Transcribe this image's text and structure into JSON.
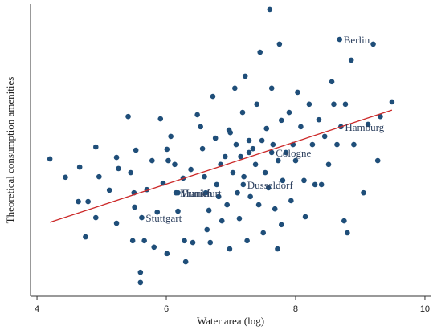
{
  "chart_data": {
    "type": "scatter",
    "xlabel": "Water area (log)",
    "ylabel": "Theoretical consumption amenities",
    "xlim": [
      3.9,
      10.1
    ],
    "ylim": [
      0,
      10
    ],
    "xticks": [
      4,
      6,
      8,
      10
    ],
    "color": "#1f4e79",
    "x": [
      4.2,
      4.44,
      4.66,
      4.64,
      4.79,
      4.75,
      4.91,
      4.96,
      4.91,
      5.12,
      5.23,
      5.26,
      5.23,
      5.41,
      5.45,
      5.5,
      5.53,
      5.51,
      5.48,
      5.6,
      5.6,
      5.7,
      5.66,
      5.78,
      5.81,
      5.86,
      5.91,
      5.95,
      6.01,
      6.01,
      6.03,
      6.07,
      6.13,
      6.18,
      6.26,
      6.28,
      6.3,
      6.38,
      6.41,
      6.48,
      6.53,
      6.56,
      6.59,
      6.61,
      6.66,
      6.63,
      6.68,
      6.72,
      6.76,
      6.78,
      6.81,
      6.84,
      6.86,
      6.91,
      6.94,
      6.97,
      6.98,
      7.03,
      7.06,
      7.08,
      7.1,
      7.13,
      7.15,
      7.18,
      7.2,
      7.22,
      7.25,
      7.28,
      7.3,
      7.34,
      7.38,
      7.4,
      7.43,
      7.45,
      7.48,
      7.5,
      7.53,
      7.55,
      7.58,
      7.6,
      7.63,
      7.65,
      7.68,
      7.72,
      7.73,
      7.75,
      7.78,
      7.78,
      7.8,
      7.85,
      7.9,
      7.93,
      7.96,
      8.0,
      8.03,
      8.08,
      8.13,
      8.15,
      8.21,
      8.26,
      8.3,
      8.36,
      8.4,
      8.45,
      8.51,
      8.56,
      8.59,
      8.64,
      8.7,
      8.68,
      8.75,
      8.8,
      8.86,
      8.9,
      9.05,
      9.12,
      9.2,
      9.27,
      9.31,
      9.49,
      8.77,
      6.99,
      7.28,
      7.63,
      7.19,
      6.18,
      6.15,
      5.62
    ],
    "values": [
      4.7,
      4.07,
      4.42,
      3.24,
      3.24,
      2.03,
      5.11,
      4.09,
      2.69,
      3.63,
      4.75,
      4.37,
      2.5,
      6.15,
      4.23,
      3.54,
      5.0,
      3.05,
      1.9,
      0.82,
      0.47,
      3.65,
      1.9,
      4.64,
      1.68,
      2.88,
      6.07,
      3.87,
      5.03,
      1.46,
      4.64,
      5.47,
      4.51,
      2.91,
      4.04,
      1.9,
      1.18,
      4.34,
      1.84,
      6.21,
      5.8,
      5.05,
      4.09,
      3.54,
      2.94,
      2.28,
      1.84,
      6.84,
      5.41,
      3.82,
      3.41,
      4.51,
      2.58,
      4.78,
      3.13,
      5.69,
      1.62,
      4.23,
      7.12,
      5.19,
      3.54,
      2.66,
      4.78,
      6.29,
      4.09,
      7.53,
      1.9,
      5.33,
      3.41,
      5.05,
      4.51,
      6.57,
      3.13,
      8.35,
      5.33,
      2.17,
      4.23,
      5.74,
      3.71,
      9.81,
      7.12,
      5.19,
      2.99,
      1.62,
      4.64,
      8.63,
      6.02,
      2.45,
      3.96,
      4.92,
      6.29,
      3.27,
      5.19,
      4.64,
      6.98,
      5.8,
      3.96,
      2.72,
      6.57,
      5.19,
      3.82,
      6.04,
      3.82,
      5.47,
      4.51,
      7.34,
      6.57,
      5.19,
      5.8,
      8.79,
      2.58,
      2.17,
      8.08,
      5.19,
      3.54,
      5.88,
      8.63,
      4.64,
      6.15,
      6.65,
      6.57,
      5.6,
      4.92,
      4.92,
      3.82,
      3.54,
      3.54,
      2.69
    ],
    "fit": {
      "color": "#cc2929",
      "x": [
        4.2,
        9.49
      ],
      "y": [
        2.53,
        6.37
      ]
    },
    "annotations": [
      {
        "text": "Berlin",
        "x": 8.68,
        "y": 8.79
      },
      {
        "text": "Hamburg",
        "x": 8.7,
        "y": 5.8
      },
      {
        "text": "Cologne",
        "x": 7.63,
        "y": 4.92
      },
      {
        "text": "Dusseldorf",
        "x": 7.19,
        "y": 3.82
      },
      {
        "text": "Munich",
        "x": 6.15,
        "y": 3.54
      },
      {
        "text": "Frankfurt",
        "x": 6.18,
        "y": 3.54
      },
      {
        "text": "Stuttgart",
        "x": 5.62,
        "y": 2.69
      }
    ]
  }
}
